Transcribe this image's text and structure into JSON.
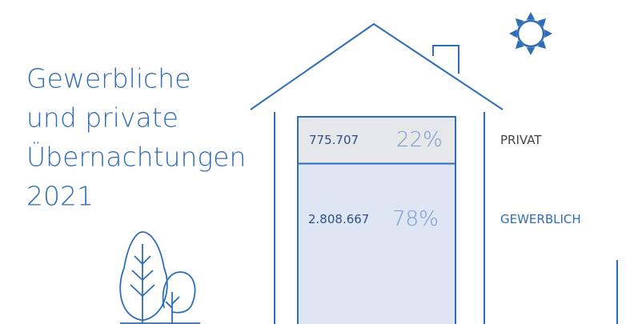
{
  "chart_data": {
    "type": "stacked_bar",
    "title": [
      "Gewerbliche",
      "und private",
      "Übernachtungen",
      "2021"
    ],
    "series": [
      {
        "name": "PRIVAT",
        "color": "#e6e7ea",
        "label_color": "#444444",
        "values": [
          775707
        ],
        "value_labels": [
          "775.707"
        ],
        "shares": [
          22
        ],
        "share_labels": [
          "22%"
        ]
      },
      {
        "name": "GEWERBLICH",
        "color": "#dfe6f3",
        "label_color": "#2f6db5",
        "values": [
          2808667
        ],
        "value_labels": [
          "2.808.667"
        ],
        "shares": [
          78
        ],
        "share_labels": [
          "78%"
        ]
      }
    ]
  }
}
